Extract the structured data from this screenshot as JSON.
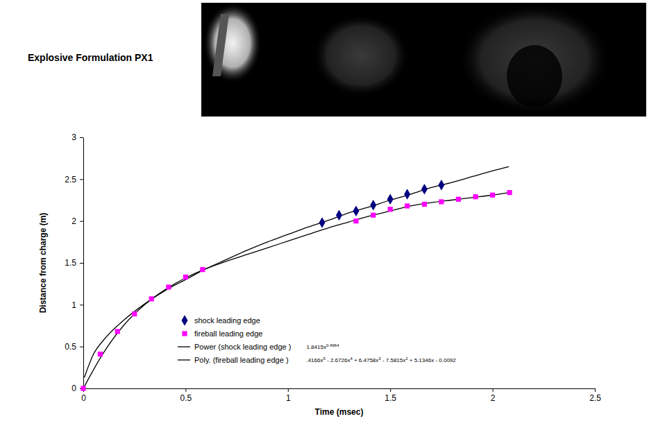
{
  "chart_data": {
    "type": "scatter",
    "title": "Explosive Formulation PX1",
    "x_label": "Time (msec)",
    "y_label": "Distance from charge (m)",
    "xlim": [
      0,
      2.5
    ],
    "xticks": [
      0,
      0.5,
      1,
      1.5,
      2,
      2.5
    ],
    "ylim": [
      0,
      3
    ],
    "yticks": [
      0,
      0.5,
      1,
      1.5,
      2,
      2.5,
      3
    ],
    "legend": "bottom",
    "series": [
      {
        "name": "shock leading edge",
        "type": "scatter",
        "color": "#000080",
        "marker": "diamond",
        "x": [
          1.167,
          1.25,
          1.333,
          1.417,
          1.5,
          1.583,
          1.667,
          1.75
        ],
        "values": [
          1.98,
          2.07,
          2.12,
          2.19,
          2.26,
          2.32,
          2.38,
          2.43
        ]
      },
      {
        "name": "fireball leading edge",
        "type": "scatter",
        "color": "#ff00ff",
        "marker": "square",
        "x": [
          0,
          0.083,
          0.167,
          0.25,
          0.333,
          0.417,
          0.5,
          0.583,
          1.333,
          1.417,
          1.5,
          1.583,
          1.667,
          1.75,
          1.833,
          1.917,
          2.0,
          2.083
        ],
        "values": [
          0,
          0.41,
          0.68,
          0.89,
          1.07,
          1.21,
          1.33,
          1.42,
          2.0,
          2.07,
          2.14,
          2.18,
          2.2,
          2.23,
          2.26,
          2.29,
          2.31,
          2.34
        ]
      },
      {
        "name": "Power (shock leading edge )",
        "type": "line",
        "color": "#000000",
        "line_style": "solid",
        "equation": [
          "1.8415x",
          "0.4964"
        ],
        "x": [
          0.005,
          0.05,
          0.1,
          0.2,
          0.3,
          0.4,
          0.5,
          0.6,
          0.7,
          0.8,
          0.9,
          1.0,
          1.1,
          1.2,
          1.3,
          1.4,
          1.5,
          1.6,
          1.7,
          1.8,
          1.9,
          2.0,
          2.08
        ],
        "values": [
          0.13,
          0.41,
          0.58,
          0.82,
          1.01,
          1.17,
          1.3,
          1.43,
          1.54,
          1.65,
          1.75,
          1.84,
          1.93,
          2.01,
          2.1,
          2.17,
          2.25,
          2.32,
          2.4,
          2.46,
          2.53,
          2.6,
          2.65
        ]
      },
      {
        "name": "Poly. (fireball leading edge )",
        "type": "line",
        "color": "#000000",
        "line_style": "solid",
        "equation": [
          ".4166x",
          "5",
          " - 2.6726x",
          "4",
          " + 6.4758x",
          "3",
          " - 7.5815x",
          "2",
          " + 5.1346x - 0.0092"
        ],
        "x": [
          0,
          0.1,
          0.2,
          0.3,
          0.4,
          0.5,
          0.6,
          0.7,
          0.8,
          0.9,
          1.0,
          1.1,
          1.2,
          1.3,
          1.4,
          1.5,
          1.6,
          1.7,
          1.8,
          1.9,
          2.0,
          2.08
        ],
        "values": [
          0,
          0.43,
          0.76,
          1.0,
          1.18,
          1.32,
          1.43,
          1.52,
          1.6,
          1.68,
          1.76,
          1.84,
          1.92,
          1.99,
          2.06,
          2.12,
          2.18,
          2.22,
          2.25,
          2.28,
          2.31,
          2.34
        ]
      }
    ]
  }
}
